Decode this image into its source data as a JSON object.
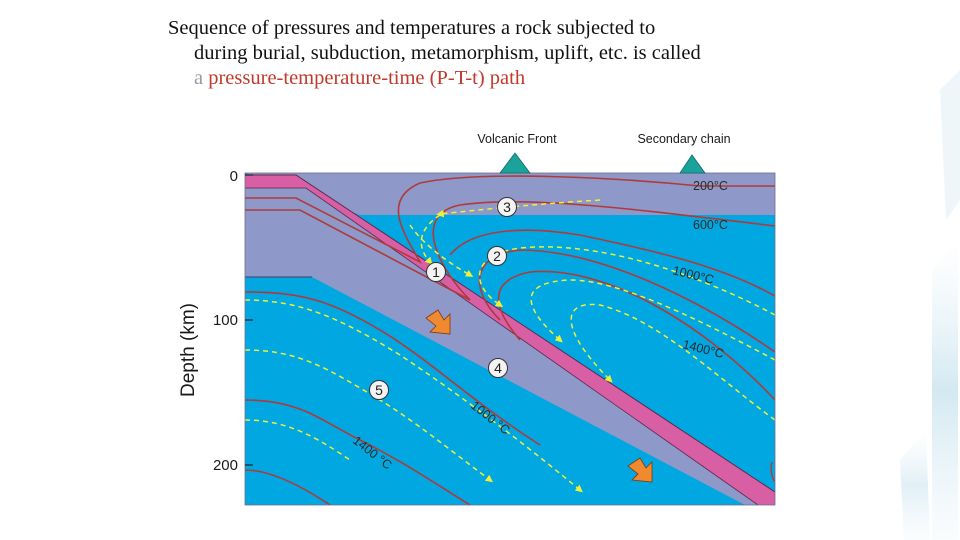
{
  "slide": {
    "line1": "Sequence of pressures and temperatures a rock subjected to",
    "line2": "during burial, subduction, metamorphism, uplift, etc. is called",
    "line3_prefix": "a ",
    "line3_highlight": "pressure-temperature-time (P-T-t) path"
  },
  "diagram": {
    "volcano_labels": [
      "Volcanic Front",
      "Secondary chain"
    ],
    "y_axis_label": "Depth (km)",
    "y_ticks": [
      "0",
      "100",
      "200"
    ],
    "isotherms": [
      "200°C",
      "600°C",
      "1000°C",
      "1400°C",
      "1000 °C",
      "1400 °C"
    ],
    "points": [
      "1",
      "2",
      "3",
      "4",
      "5"
    ]
  },
  "colors": {
    "cyan": "#00a7e1",
    "slab": "#8e98c9",
    "pink": "#d95fa4",
    "isotherm": "#b03a3a",
    "flow": "#eef03a",
    "arrow": "#f08a30",
    "volcano": "#1aa39b",
    "highlight": "#c0392b"
  }
}
